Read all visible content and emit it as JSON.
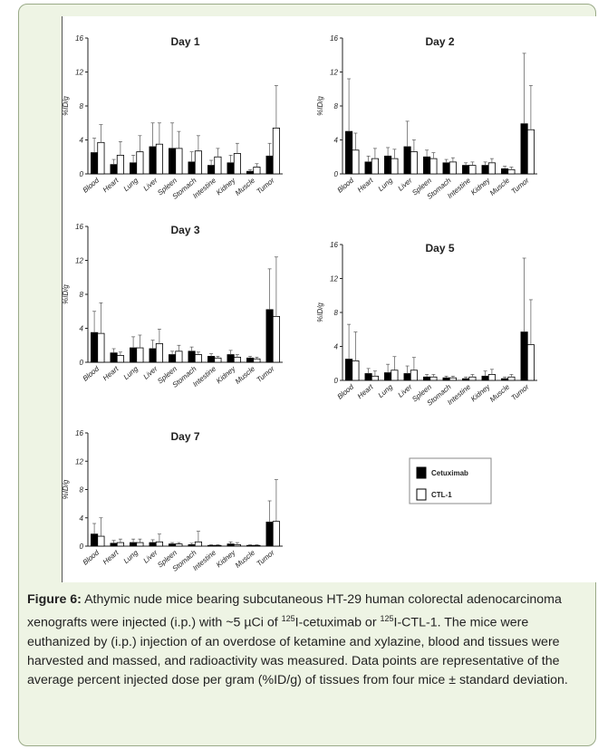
{
  "chart_data": [
    {
      "type": "bar",
      "title": "Day 1",
      "ylabel": "%ID/g",
      "categories": [
        "Blood",
        "Heart",
        "Lung",
        "Liver",
        "Spleen",
        "Stomach",
        "Intestine",
        "Kidney",
        "Muscle",
        "Tumor"
      ],
      "ylim": [
        0,
        16
      ],
      "yticks": [
        0,
        4,
        8,
        12,
        16
      ],
      "series": [
        {
          "values": [
            2.5,
            1.1,
            1.3,
            3.2,
            3.0,
            1.4,
            1.0,
            1.3,
            0.3,
            2.1
          ],
          "errors": [
            1.7,
            0.6,
            0.9,
            2.8,
            3.0,
            1.2,
            0.6,
            0.9,
            0.2,
            1.5
          ]
        },
        {
          "values": [
            3.7,
            2.2,
            2.6,
            3.5,
            3.0,
            2.7,
            2.0,
            2.4,
            0.8,
            5.4
          ],
          "errors": [
            2.1,
            1.6,
            1.9,
            2.5,
            2.0,
            1.8,
            1.0,
            1.2,
            0.4,
            5.0
          ]
        }
      ]
    },
    {
      "type": "bar",
      "title": "Day 2",
      "ylabel": "%ID/g",
      "categories": [
        "Blood",
        "Heart",
        "Lung",
        "Liver",
        "Spleen",
        "Stomach",
        "Intestine",
        "Kidney",
        "Muscle",
        "Tumor"
      ],
      "ylim": [
        0,
        16
      ],
      "yticks": [
        0,
        4,
        8,
        12,
        16
      ],
      "series": [
        {
          "values": [
            5.0,
            1.4,
            2.1,
            3.2,
            2.0,
            1.3,
            1.0,
            1.0,
            0.6,
            5.9
          ],
          "errors": [
            6.2,
            0.7,
            1.0,
            3.0,
            0.8,
            0.4,
            0.3,
            0.4,
            0.3,
            8.3
          ]
        },
        {
          "values": [
            2.8,
            1.8,
            1.8,
            2.6,
            1.8,
            1.4,
            1.0,
            1.3,
            0.5,
            5.2
          ],
          "errors": [
            2.0,
            1.2,
            1.1,
            1.4,
            0.7,
            0.5,
            0.4,
            0.5,
            0.3,
            5.2
          ]
        }
      ]
    },
    {
      "type": "bar",
      "title": "Day 3",
      "ylabel": "%ID/g",
      "categories": [
        "Blood",
        "Heart",
        "Lung",
        "Liver",
        "Spleen",
        "Stomach",
        "Intestine",
        "Kidney",
        "Muscle",
        "Tumor"
      ],
      "ylim": [
        0,
        16
      ],
      "yticks": [
        0,
        4,
        8,
        12,
        16
      ],
      "series": [
        {
          "values": [
            3.5,
            1.1,
            1.7,
            1.6,
            0.9,
            1.3,
            0.7,
            0.9,
            0.5,
            6.2
          ],
          "errors": [
            2.5,
            0.5,
            1.3,
            1.0,
            0.4,
            0.5,
            0.3,
            0.5,
            0.2,
            4.8
          ]
        },
        {
          "values": [
            3.4,
            0.8,
            1.7,
            2.2,
            1.3,
            0.9,
            0.5,
            0.6,
            0.4,
            5.4
          ],
          "errors": [
            3.6,
            0.4,
            1.5,
            1.7,
            0.7,
            0.3,
            0.2,
            0.3,
            0.2,
            7.0
          ]
        }
      ]
    },
    {
      "type": "bar",
      "title": "Day 5",
      "ylabel": "%ID/g",
      "categories": [
        "Blood",
        "Heart",
        "Lung",
        "Liver",
        "Spleen",
        "Stomach",
        "Intestine",
        "Kidney",
        "Muscle",
        "Tumor"
      ],
      "ylim": [
        0,
        16
      ],
      "yticks": [
        0,
        4,
        8,
        12,
        16
      ],
      "series": [
        {
          "values": [
            2.5,
            0.8,
            0.9,
            0.8,
            0.4,
            0.3,
            0.2,
            0.5,
            0.2,
            5.7
          ],
          "errors": [
            4.1,
            0.6,
            1.0,
            0.9,
            0.3,
            0.2,
            0.2,
            0.6,
            0.2,
            8.7
          ]
        },
        {
          "values": [
            2.3,
            0.5,
            1.2,
            1.2,
            0.4,
            0.3,
            0.4,
            0.7,
            0.4,
            4.2
          ],
          "errors": [
            3.4,
            0.6,
            1.6,
            1.5,
            0.3,
            0.2,
            0.3,
            0.6,
            0.3,
            5.3
          ]
        }
      ]
    },
    {
      "type": "bar",
      "title": "Day 7",
      "ylabel": "%ID/g",
      "categories": [
        "Blood",
        "Heart",
        "Lung",
        "Liver",
        "Spleen",
        "Stomach",
        "Intestine",
        "Kidney",
        "Muscle",
        "Tumor"
      ],
      "ylim": [
        0,
        16
      ],
      "yticks": [
        0,
        4,
        8,
        12,
        16
      ],
      "series": [
        {
          "values": [
            1.7,
            0.4,
            0.5,
            0.5,
            0.3,
            0.2,
            0.1,
            0.3,
            0.1,
            3.4
          ],
          "errors": [
            1.5,
            0.4,
            0.5,
            0.4,
            0.2,
            0.2,
            0.1,
            0.3,
            0.1,
            3.0
          ]
        },
        {
          "values": [
            1.4,
            0.5,
            0.5,
            0.6,
            0.3,
            0.6,
            0.1,
            0.2,
            0.1,
            3.5
          ],
          "errors": [
            2.6,
            0.5,
            0.5,
            1.1,
            0.2,
            1.5,
            0.1,
            0.3,
            0.1,
            5.9
          ]
        }
      ]
    }
  ],
  "legend": [
    {
      "name": "Cetuximab",
      "color": "#000000"
    },
    {
      "name": "CTL-1",
      "color": "#ffffff"
    }
  ],
  "caption": {
    "label": "Figure 6:",
    "parts": [
      {
        "text": " Athymic nude mice bearing subcutaneous HT-29 human colorectal adenocarcinoma xenografts were injected (i.p.) with ~5 µCi of "
      },
      {
        "text": "125",
        "sup": true
      },
      {
        "text": "I-cetuximab or "
      },
      {
        "text": "125",
        "sup": true
      },
      {
        "text": "I-CTL-1. The mice were euthanized by (i.p.) injection of an overdose of ketamine and xylazine, blood and tissues were harvested and massed, and radioactivity was measured. Data points are representative of the average percent injected dose per gram (%ID/g) of tissues from four mice ± standard deviation."
      }
    ]
  }
}
